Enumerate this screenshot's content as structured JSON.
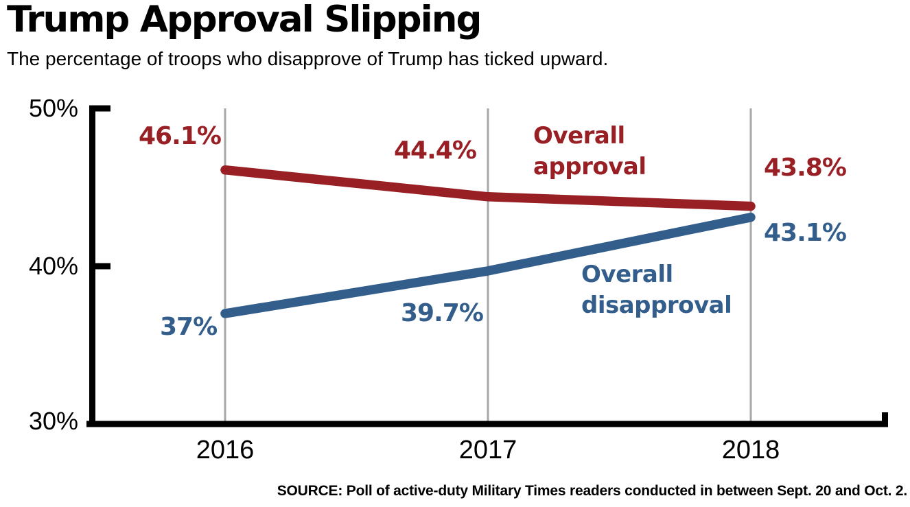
{
  "title": "Trump Approval Slipping",
  "subtitle": "The percentage of troops who disapprove of Trump has ticked upward.",
  "source_note": "SOURCE: Poll of active-duty Military Times readers conducted in between Sept. 20 and Oct. 2.",
  "colors": {
    "approval_red": "#981f24",
    "disapproval_blue": "#335e8c",
    "gridline_gray": "#a7a7a7",
    "axis_black": "#000000",
    "background": "#ffffff"
  },
  "chart_data": {
    "type": "line",
    "title": "Trump Approval Slipping",
    "categories": [
      "2016",
      "2017",
      "2018"
    ],
    "series": [
      {
        "name": "Overall approval",
        "annotation": "Overall\napproval",
        "color": "#981f24",
        "values": [
          46.1,
          44.4,
          43.8
        ],
        "point_labels": [
          "46.1%",
          "44.4%",
          "43.8%"
        ]
      },
      {
        "name": "Overall disapproval",
        "annotation": "Overall\ndisapproval",
        "color": "#335e8c",
        "values": [
          37,
          39.7,
          43.1
        ],
        "point_labels": [
          "37%",
          "39.7%",
          "43.1%"
        ]
      }
    ],
    "xlabel": "",
    "ylabel": "",
    "ylim": [
      30,
      50
    ],
    "ytick_labels": [
      "50%",
      "40%",
      "30%"
    ],
    "grid": "vertical gridlines at each year",
    "legend": "inline annotations next to lines"
  }
}
